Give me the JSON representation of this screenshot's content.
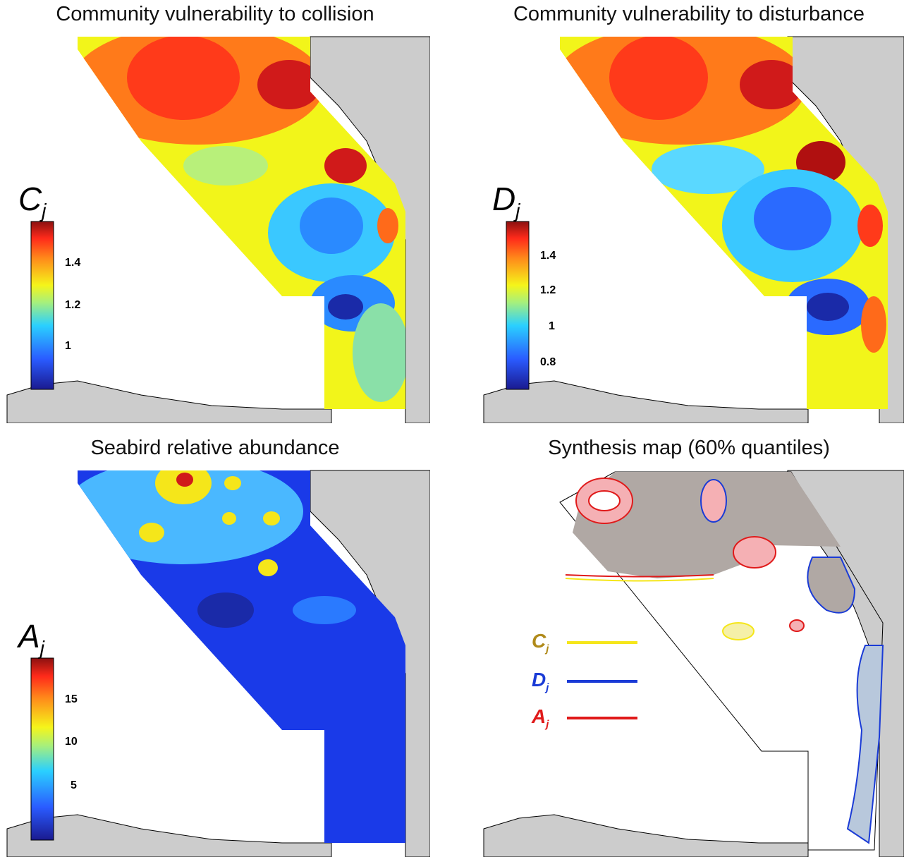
{
  "panels": [
    {
      "title": "Community vulnerability to collision",
      "symbol": "C",
      "sub": "j",
      "ticks": [
        "1.4",
        "1.2",
        "1"
      ]
    },
    {
      "title": "Community vulnerability to disturbance",
      "symbol": "D",
      "sub": "j",
      "ticks": [
        "1.4",
        "1.2",
        "1",
        "0.8"
      ]
    },
    {
      "title": "Seabird relative abundance",
      "symbol": "A",
      "sub": "j",
      "ticks": [
        "15",
        "10",
        "5"
      ]
    },
    {
      "title": "Synthesis map (60% quantiles)"
    }
  ],
  "legend": [
    {
      "symbol": "C",
      "sub": "j",
      "color": "#b08a1a",
      "line_color": "#f5e61a"
    },
    {
      "symbol": "D",
      "sub": "j",
      "color": "#1a3bd6",
      "line_color": "#1a3bd6"
    },
    {
      "symbol": "A",
      "sub": "j",
      "color": "#e01a1a",
      "line_color": "#e01a1a"
    }
  ],
  "colors": {
    "land": "#cccccc",
    "high": "#8b1010",
    "low": "#1a1a8f"
  }
}
